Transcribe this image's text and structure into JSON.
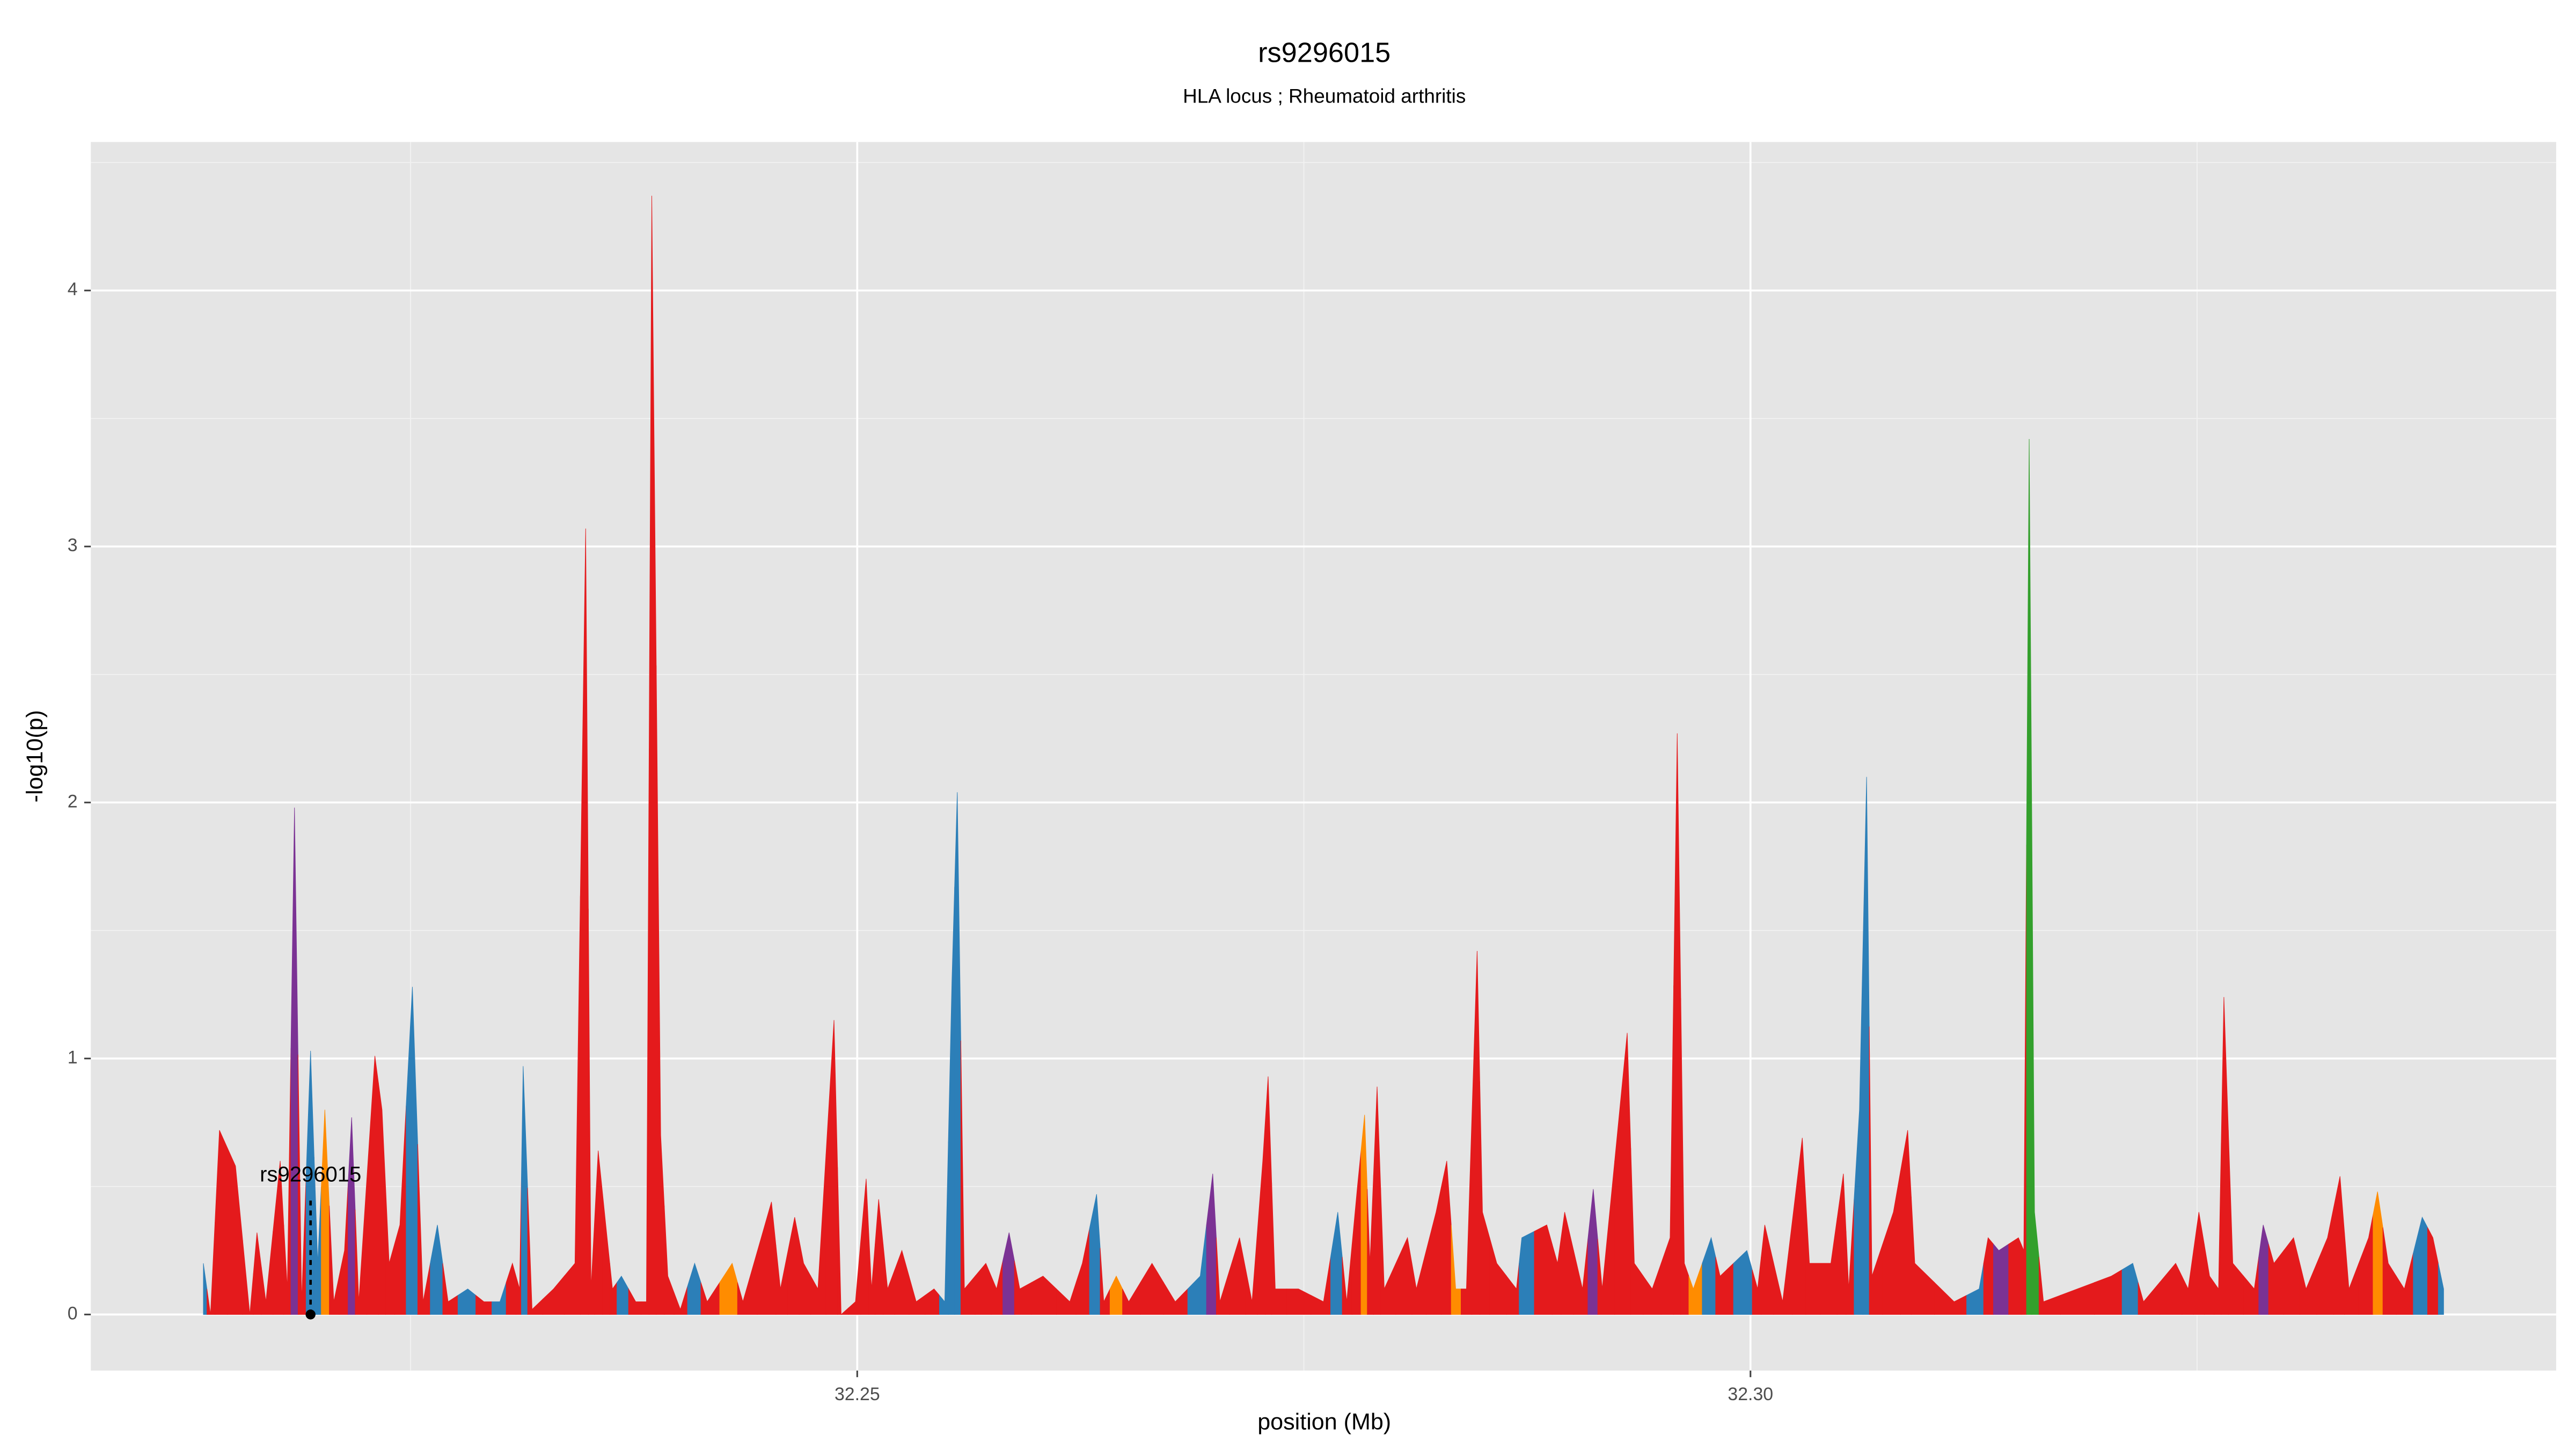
{
  "chart_data": {
    "type": "area",
    "title": "rs9296015",
    "subtitle": "HLA locus ; Rheumatoid arthritis",
    "x_label": "position (Mb)",
    "y_label": "-log10(p)",
    "xlim": [
      32.2071,
      32.3451
    ],
    "ylim": [
      -0.219,
      4.58
    ],
    "xticks": [
      32.25,
      {
        "value": 32.3,
        "label": "32.30"
      }
    ],
    "minor_xticks": [
      32.225,
      32.275,
      32.325
    ],
    "yticks": [
      0,
      1,
      2,
      3,
      4
    ],
    "minor_yticks": [
      0.5,
      1.5,
      2.5,
      3.5,
      4.5
    ],
    "grid": true,
    "annotation": {
      "text": "rs9296015",
      "x": 32.2194,
      "y": 0
    },
    "x": [
      32.2134,
      32.2138,
      32.2143,
      32.2152,
      32.216,
      32.2164,
      32.2169,
      32.2177,
      32.2181,
      32.2185,
      32.2189,
      32.2194,
      32.2198,
      32.2202,
      32.2207,
      32.2213,
      32.2217,
      32.2221,
      32.223,
      32.2234,
      32.2238,
      32.2244,
      32.2251,
      32.2257,
      32.2265,
      32.2271,
      32.2282,
      32.2291,
      32.23,
      32.2307,
      32.2311,
      32.2313,
      32.2318,
      32.233,
      32.2342,
      32.2348,
      32.2351,
      32.2355,
      32.236,
      32.2363,
      32.2368,
      32.2376,
      32.2382,
      32.2385,
      32.239,
      32.2394,
      32.2401,
      32.2409,
      32.2416,
      32.243,
      32.2436,
      32.2452,
      32.2457,
      32.2465,
      32.247,
      32.2478,
      32.2487,
      32.2491,
      32.2499,
      32.2505,
      32.2508,
      32.2512,
      32.2517,
      32.2525,
      32.2533,
      32.2543,
      32.2549,
      32.2553,
      32.2556,
      32.256,
      32.2572,
      32.2578,
      32.2585,
      32.2591,
      32.2604,
      32.2619,
      32.2626,
      32.2634,
      32.2638,
      32.2645,
      32.2652,
      32.2665,
      32.2678,
      32.2692,
      32.2699,
      32.2703,
      32.2714,
      32.2721,
      32.2727,
      32.273,
      32.2734,
      32.2747,
      32.2761,
      32.2769,
      32.2774,
      32.278,
      32.2784,
      32.2787,
      32.2791,
      32.2795,
      32.2808,
      32.2813,
      32.2824,
      32.283,
      32.2835,
      32.2841,
      32.2847,
      32.285,
      32.2858,
      32.2869,
      32.2872,
      32.2886,
      32.2892,
      32.2896,
      32.2906,
      32.2912,
      32.2917,
      32.2931,
      32.2935,
      32.2945,
      32.2955,
      32.2959,
      32.2963,
      32.2968,
      32.2978,
      32.2983,
      32.2998,
      32.3004,
      32.3008,
      32.3018,
      32.3029,
      32.3033,
      32.3045,
      32.3052,
      32.3055,
      32.3061,
      32.3065,
      32.3068,
      32.308,
      32.3088,
      32.3092,
      32.3114,
      32.3128,
      32.3133,
      32.3139,
      32.315,
      32.3153,
      32.3156,
      32.3159,
      32.3164,
      32.3183,
      32.3202,
      32.3214,
      32.322,
      32.3238,
      32.3245,
      32.3251,
      32.3257,
      32.3262,
      32.3265,
      32.327,
      32.3282,
      32.3287,
      32.3293,
      32.3304,
      32.3311,
      32.3323,
      32.333,
      32.3335,
      32.3346,
      32.3351,
      32.3357,
      32.3366,
      32.3376,
      32.3382,
      32.3388
    ],
    "values": [
      0.2,
      0,
      0.72,
      0.58,
      0,
      0.32,
      0.05,
      0.6,
      0.1,
      1.98,
      0.05,
      1.03,
      0.2,
      0.8,
      0.05,
      0.25,
      0.77,
      0.05,
      1.01,
      0.8,
      0.2,
      0.35,
      1.28,
      0.05,
      0.35,
      0.05,
      0.1,
      0.05,
      0.05,
      0.2,
      0.1,
      0.97,
      0.02,
      0.1,
      0.2,
      3.07,
      0.1,
      0.64,
      0.3,
      0.1,
      0.15,
      0.05,
      0.05,
      4.37,
      0.7,
      0.15,
      0.02,
      0.2,
      0.05,
      0.2,
      0.05,
      0.44,
      0.1,
      0.38,
      0.2,
      0.1,
      1.15,
      0,
      0.05,
      0.53,
      0.1,
      0.45,
      0.1,
      0.25,
      0.05,
      0.1,
      0.05,
      1.3,
      2.04,
      0.1,
      0.2,
      0.1,
      0.32,
      0.1,
      0.15,
      0.05,
      0.2,
      0.47,
      0.05,
      0.15,
      0.05,
      0.2,
      0.05,
      0.15,
      0.55,
      0.05,
      0.3,
      0.05,
      0.6,
      0.93,
      0.1,
      0.1,
      0.05,
      0.4,
      0.05,
      0.5,
      0.78,
      0.2,
      0.89,
      0.1,
      0.3,
      0.1,
      0.4,
      0.6,
      0.1,
      0.1,
      1.42,
      0.4,
      0.2,
      0.1,
      0.3,
      0.35,
      0.2,
      0.4,
      0.1,
      0.49,
      0.1,
      1.1,
      0.2,
      0.1,
      0.3,
      2.27,
      0.2,
      0.1,
      0.3,
      0.15,
      0.25,
      0.1,
      0.35,
      0.05,
      0.69,
      0.2,
      0.2,
      0.55,
      0.1,
      0.8,
      2.1,
      0.15,
      0.4,
      0.72,
      0.2,
      0.05,
      0.1,
      0.3,
      0.25,
      0.3,
      0.25,
      3.42,
      0.4,
      0.05,
      0.1,
      0.15,
      0.2,
      0.05,
      0.2,
      0.1,
      0.4,
      0.15,
      0.1,
      1.24,
      0.2,
      0.1,
      0.35,
      0.2,
      0.3,
      0.1,
      0.3,
      0.54,
      0.1,
      0.3,
      0.48,
      0.2,
      0.1,
      0.38,
      0.3,
      0.1
    ],
    "colors": [
      "#2c7fb8",
      "#e41a1c",
      "#e41a1c",
      "#e41a1c",
      "#e41a1c",
      "#e41a1c",
      "#e41a1c",
      "#e41a1c",
      "#e41a1c",
      "#7b3294",
      "#e41a1c",
      "#2c7fb8",
      "#2c7fb8",
      "#ff8c00",
      "#e41a1c",
      "#e41a1c",
      "#7b3294",
      "#e41a1c",
      "#e41a1c",
      "#e41a1c",
      "#e41a1c",
      "#e41a1c",
      "#2c7fb8",
      "#e41a1c",
      "#2c7fb8",
      "#e41a1c",
      "#2c7fb8",
      "#e41a1c",
      "#2c7fb8",
      "#e41a1c",
      "#e41a1c",
      "#2c7fb8",
      "#e41a1c",
      "#e41a1c",
      "#e41a1c",
      "#e41a1c",
      "#e41a1c",
      "#e41a1c",
      "#e41a1c",
      "#e41a1c",
      "#2c7fb8",
      "#e41a1c",
      "#e41a1c",
      "#e41a1c",
      "#e41a1c",
      "#e41a1c",
      "#e41a1c",
      "#2c7fb8",
      "#e41a1c",
      "#ff8c00",
      "#e41a1c",
      "#e41a1c",
      "#e41a1c",
      "#e41a1c",
      "#e41a1c",
      "#e41a1c",
      "#e41a1c",
      "#e41a1c",
      "#e41a1c",
      "#e41a1c",
      "#e41a1c",
      "#e41a1c",
      "#e41a1c",
      "#e41a1c",
      "#e41a1c",
      "#e41a1c",
      "#2c7fb8",
      "#2c7fb8",
      "#2c7fb8",
      "#e41a1c",
      "#e41a1c",
      "#e41a1c",
      "#7b3294",
      "#e41a1c",
      "#e41a1c",
      "#e41a1c",
      "#e41a1c",
      "#2c7fb8",
      "#e41a1c",
      "#ff8c00",
      "#e41a1c",
      "#e41a1c",
      "#e41a1c",
      "#2c7fb8",
      "#7b3294",
      "#e41a1c",
      "#e41a1c",
      "#e41a1c",
      "#e41a1c",
      "#e41a1c",
      "#e41a1c",
      "#e41a1c",
      "#e41a1c",
      "#2c7fb8",
      "#e41a1c",
      "#e41a1c",
      "#ff8c00",
      "#e41a1c",
      "#e41a1c",
      "#e41a1c",
      "#e41a1c",
      "#e41a1c",
      "#e41a1c",
      "#e41a1c",
      "#ff8c00",
      "#e41a1c",
      "#e41a1c",
      "#e41a1c",
      "#e41a1c",
      "#e41a1c",
      "#2c7fb8",
      "#e41a1c",
      "#e41a1c",
      "#e41a1c",
      "#e41a1c",
      "#7b3294",
      "#e41a1c",
      "#e41a1c",
      "#e41a1c",
      "#e41a1c",
      "#e41a1c",
      "#e41a1c",
      "#e41a1c",
      "#ff8c00",
      "#2c7fb8",
      "#e41a1c",
      "#2c7fb8",
      "#e41a1c",
      "#e41a1c",
      "#e41a1c",
      "#e41a1c",
      "#e41a1c",
      "#e41a1c",
      "#e41a1c",
      "#e41a1c",
      "#2c7fb8",
      "#2c7fb8",
      "#e41a1c",
      "#e41a1c",
      "#e41a1c",
      "#e41a1c",
      "#e41a1c",
      "#2c7fb8",
      "#e41a1c",
      "#7b3294",
      "#e41a1c",
      "#e41a1c",
      "#33a02c",
      "#33a02c",
      "#e41a1c",
      "#e41a1c",
      "#e41a1c",
      "#2c7fb8",
      "#e41a1c",
      "#e41a1c",
      "#e41a1c",
      "#e41a1c",
      "#e41a1c",
      "#e41a1c",
      "#e41a1c",
      "#e41a1c",
      "#e41a1c",
      "#7b3294",
      "#e41a1c",
      "#e41a1c",
      "#e41a1c",
      "#e41a1c",
      "#e41a1c",
      "#e41a1c",
      "#e41a1c",
      "#ff8c00",
      "#e41a1c",
      "#e41a1c",
      "#2c7fb8",
      "#e41a1c",
      "#2c7fb8"
    ]
  }
}
